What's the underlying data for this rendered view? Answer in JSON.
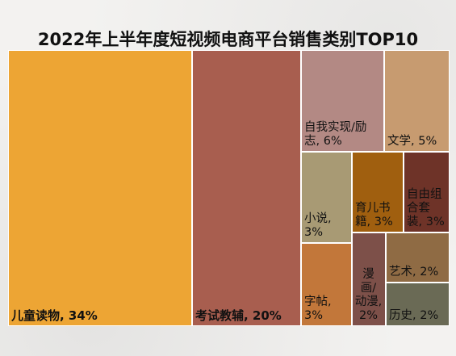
{
  "chart_data": {
    "type": "treemap",
    "title": "2022年上半年度短视频电商平台销售类别TOP10",
    "items": [
      {
        "name": "儿童读物",
        "value": 34,
        "display": "儿童读物, 34%",
        "color": "#EDA534"
      },
      {
        "name": "考试教辅",
        "value": 20,
        "display": "考试教辅, 20%",
        "color": "#A85E4F"
      },
      {
        "name": "自我实现/励志",
        "value": 6,
        "display": "自我实现/励志, 6%",
        "color": "#B38984"
      },
      {
        "name": "文学",
        "value": 5,
        "display": "文学, 5%",
        "color": "#C79B70"
      },
      {
        "name": "小说",
        "value": 3,
        "display": "小说, 3%",
        "color": "#A89A74"
      },
      {
        "name": "育儿书籍",
        "value": 3,
        "display": "育儿书籍, 3%",
        "color": "#A05F0F"
      },
      {
        "name": "自由组合套装",
        "value": 3,
        "display": "自由组合套装, 3%",
        "color": "#6E3328"
      },
      {
        "name": "字帖",
        "value": 3,
        "display": "字帖, 3%",
        "color": "#C2773A"
      },
      {
        "name": "漫画/动漫",
        "value": 2,
        "display": "漫画/动漫, 2%",
        "color": "#7D5049"
      },
      {
        "name": "艺术",
        "value": 2,
        "display": "艺术, 2%",
        "color": "#8F6B44"
      },
      {
        "name": "历史",
        "value": 2,
        "display": "历史, 2%",
        "color": "#6A6A55"
      }
    ]
  }
}
